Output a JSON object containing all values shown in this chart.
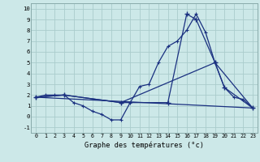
{
  "title": "Graphe des températures (°c)",
  "background_color": "#cce8e8",
  "grid_color": "#aacccc",
  "line_color": "#1a3080",
  "xlim": [
    -0.5,
    23.5
  ],
  "ylim": [
    -1.5,
    10.5
  ],
  "xticks": [
    0,
    1,
    2,
    3,
    4,
    5,
    6,
    7,
    8,
    9,
    10,
    11,
    12,
    13,
    14,
    15,
    16,
    17,
    18,
    19,
    20,
    21,
    22,
    23
  ],
  "yticks": [
    -1,
    0,
    1,
    2,
    3,
    4,
    5,
    6,
    7,
    8,
    9,
    10
  ],
  "line1_x": [
    0,
    1,
    2,
    3,
    4,
    5,
    6,
    7,
    8,
    9,
    10,
    11,
    12,
    13,
    14,
    15,
    16,
    17,
    18,
    19,
    20,
    21,
    22,
    23
  ],
  "line1_y": [
    1.8,
    2.0,
    2.0,
    2.0,
    1.3,
    1.0,
    0.5,
    0.2,
    -0.3,
    -0.3,
    1.3,
    2.8,
    3.0,
    5.0,
    6.5,
    7.0,
    8.0,
    9.5,
    7.8,
    5.0,
    2.7,
    1.8,
    1.6,
    0.8
  ],
  "line2_x": [
    0,
    3,
    9,
    14,
    16,
    17,
    19,
    20,
    23
  ],
  "line2_y": [
    1.8,
    2.0,
    1.3,
    1.3,
    9.5,
    9.0,
    5.0,
    2.7,
    0.8
  ],
  "line3_x": [
    0,
    3,
    9,
    19,
    23
  ],
  "line3_y": [
    1.8,
    2.0,
    1.3,
    5.0,
    0.8
  ],
  "line4_x": [
    0,
    23
  ],
  "line4_y": [
    1.8,
    0.8
  ]
}
